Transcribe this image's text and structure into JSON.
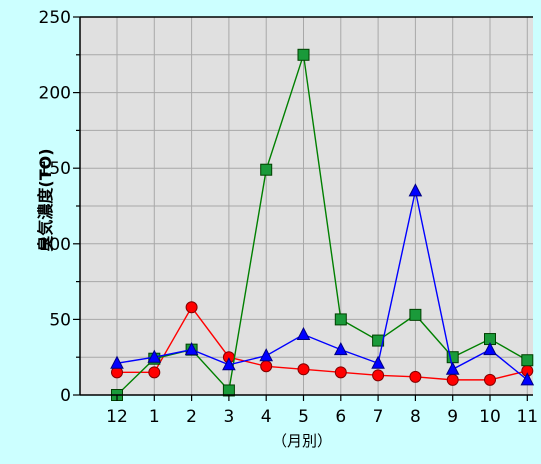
{
  "colors": {
    "page_background": "#ccffff",
    "plot_background": "#e0e0e0",
    "grid": "#a8a8a8",
    "axis": "#000000"
  },
  "chart_data": {
    "type": "line",
    "xlabel": "（月別）",
    "ylabel": "臭気濃度(TO)",
    "categories": [
      "12",
      "1",
      "2",
      "3",
      "4",
      "5",
      "6",
      "7",
      "8",
      "9",
      "10",
      "11"
    ],
    "ylim": [
      0,
      250
    ],
    "yticks": [
      0,
      50,
      100,
      150,
      200,
      250
    ],
    "grid": true,
    "legend": "none",
    "series": [
      {
        "color": "#ff0000",
        "marker": "circle",
        "values": [
          15,
          15,
          58,
          25,
          19,
          17,
          15,
          13,
          12,
          10,
          10,
          16
        ]
      },
      {
        "color": "#008000",
        "fill": "#1a9a3a",
        "marker": "square",
        "values": [
          0,
          24,
          30,
          3,
          149,
          225,
          50,
          36,
          53,
          25,
          37,
          23
        ]
      },
      {
        "color": "#0000ff",
        "marker": "triangle",
        "values": [
          21,
          25,
          30,
          20,
          26,
          40,
          30,
          21,
          135,
          17,
          30,
          10
        ]
      }
    ]
  }
}
